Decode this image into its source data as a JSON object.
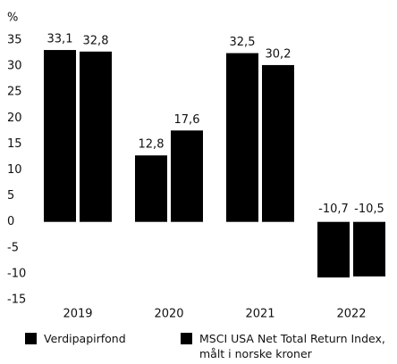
{
  "chart_data": {
    "type": "bar",
    "y_label": "%",
    "categories": [
      "2019",
      "2020",
      "2021",
      "2022"
    ],
    "series": [
      {
        "name": "Verdipapirfond",
        "color": "#000000",
        "values": [
          33.1,
          12.8,
          32.5,
          -10.7
        ],
        "value_labels": [
          "33,1",
          "12,8",
          "32,5",
          "-10,7"
        ]
      },
      {
        "name": "MSCI USA Net Total Return Index, målt i norske kroner",
        "color": "#000000",
        "values": [
          32.8,
          17.6,
          30.2,
          -10.5
        ],
        "value_labels": [
          "32,8",
          "17,6",
          "30,2",
          "-10,5"
        ]
      }
    ],
    "ylim": [
      -15,
      35
    ],
    "yticks": [
      -15,
      -10,
      -5,
      0,
      5,
      10,
      15,
      20,
      25,
      30,
      35
    ],
    "grid": false
  }
}
